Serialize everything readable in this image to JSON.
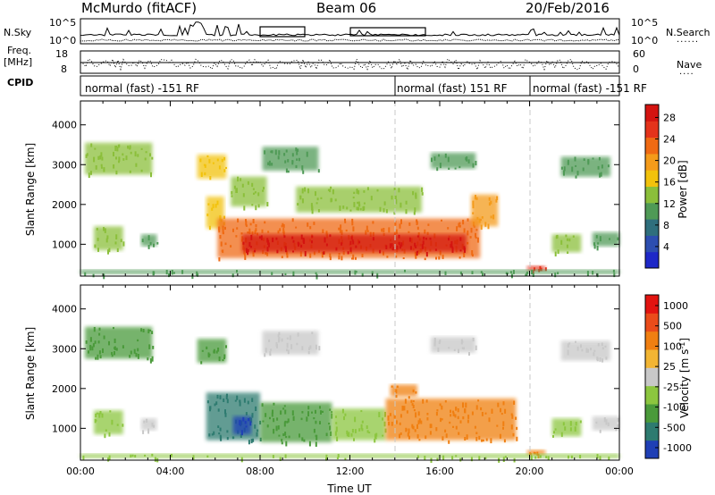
{
  "header": {
    "station": "McMurdo (fitACF)",
    "beam": "Beam 06",
    "date": "20/Feb/2016"
  },
  "left_labels": {
    "nsky": "N.Sky",
    "freq": "Freq.",
    "freq_unit": "[MHz]",
    "cpid": "CPID"
  },
  "right_labels": {
    "nsearch": "N.Search",
    "nave": "Nave"
  },
  "axis_ticks": {
    "sky_left": [
      "10^5",
      "10^0"
    ],
    "sky_right": [
      "10^5",
      "10^0"
    ],
    "freq_left": [
      "18",
      "8"
    ],
    "nave_right": [
      "60",
      "0"
    ]
  },
  "modes": [
    {
      "text": "normal (fast) -151 RF",
      "start_hour": 0
    },
    {
      "text": "normal (fast) 151 RF",
      "start_hour": 14
    },
    {
      "text": "normal (fast) -151 RF",
      "start_hour": 20
    }
  ],
  "colors": {
    "frame": "#000000",
    "mode_divider": "#c8c8c8"
  },
  "chart_data": [
    {
      "type": "heatmap",
      "title": "",
      "ylabel": "Slant Range [km]",
      "xlabel": "",
      "ylim": [
        200,
        4600
      ],
      "xlim": [
        0,
        24
      ],
      "y_ticks": [
        "1000",
        "2000",
        "3000",
        "4000"
      ],
      "colorbar": {
        "label": "Power [dB]",
        "ticks": [
          "4",
          "8",
          "12",
          "16",
          "20",
          "24",
          "28"
        ],
        "colors": [
          "#1e28c8",
          "#2d4eb0",
          "#2f6f7d",
          "#4f9a56",
          "#8bbf3a",
          "#f2c20c",
          "#f49b1a",
          "#ef6a13",
          "#e4331b",
          "#d41410"
        ]
      },
      "echo_regions": [
        {
          "t0": 0.2,
          "t1": 3.2,
          "r0": 2750,
          "r1": 3550,
          "level": 4
        },
        {
          "t0": 0.6,
          "t1": 1.9,
          "r0": 850,
          "r1": 1450,
          "level": 4
        },
        {
          "t0": 2.7,
          "t1": 3.4,
          "r0": 950,
          "r1": 1250,
          "level": 3
        },
        {
          "t0": 5.2,
          "t1": 6.5,
          "r0": 2650,
          "r1": 3250,
          "level": 5
        },
        {
          "t0": 5.6,
          "t1": 6.4,
          "r0": 1400,
          "r1": 2200,
          "level": 5
        },
        {
          "t0": 6.7,
          "t1": 8.3,
          "r0": 1950,
          "r1": 2700,
          "level": 4
        },
        {
          "t0": 6.1,
          "t1": 17.8,
          "r0": 650,
          "r1": 1650,
          "level": 7
        },
        {
          "t0": 7.2,
          "t1": 17.2,
          "r0": 800,
          "r1": 1250,
          "level": 9
        },
        {
          "t0": 8.1,
          "t1": 10.6,
          "r0": 2850,
          "r1": 3450,
          "level": 3
        },
        {
          "t0": 9.6,
          "t1": 15.2,
          "r0": 1800,
          "r1": 2450,
          "level": 4
        },
        {
          "t0": 15.6,
          "t1": 17.6,
          "r0": 2900,
          "r1": 3300,
          "level": 3
        },
        {
          "t0": 17.4,
          "t1": 18.6,
          "r0": 1450,
          "r1": 2250,
          "level": 6
        },
        {
          "t0": 19.9,
          "t1": 20.7,
          "r0": 330,
          "r1": 460,
          "level": 8
        },
        {
          "t0": 21.0,
          "t1": 22.3,
          "r0": 800,
          "r1": 1250,
          "level": 4
        },
        {
          "t0": 21.4,
          "t1": 23.6,
          "r0": 2700,
          "r1": 3200,
          "level": 3
        },
        {
          "t0": 22.8,
          "t1": 24.0,
          "r0": 950,
          "r1": 1300,
          "level": 3
        },
        {
          "t0": 0.0,
          "t1": 24.0,
          "r0": 250,
          "r1": 360,
          "level": 3
        }
      ]
    },
    {
      "type": "heatmap",
      "title": "",
      "ylabel": "Slant Range [km]",
      "xlabel": "Time UT",
      "ylim": [
        200,
        4600
      ],
      "xlim": [
        0,
        24
      ],
      "x_ticks": [
        "00:00",
        "04:00",
        "08:00",
        "12:00",
        "16:00",
        "20:00",
        "00:00"
      ],
      "y_ticks": [
        "1000",
        "2000",
        "3000",
        "4000"
      ],
      "colorbar": {
        "label": "Velocity [m s^-1]",
        "ticks": [
          "1000",
          "500",
          "100",
          "25",
          "-25",
          "-100",
          "-500",
          "-1000"
        ],
        "colors": [
          "#1f3fb5",
          "#2e7b70",
          "#4a9a3a",
          "#8cc63f",
          "#c8c8c8",
          "#f2b533",
          "#f07f11",
          "#ea4c1a",
          "#e21410"
        ]
      },
      "echo_regions": [
        {
          "t0": 0.2,
          "t1": 3.2,
          "r0": 2750,
          "r1": 3550,
          "level": 2
        },
        {
          "t0": 0.6,
          "t1": 1.9,
          "r0": 850,
          "r1": 1450,
          "level": 3
        },
        {
          "t0": 2.7,
          "t1": 3.4,
          "r0": 950,
          "r1": 1250,
          "level": 4
        },
        {
          "t0": 5.2,
          "t1": 6.5,
          "r0": 2650,
          "r1": 3250,
          "level": 2
        },
        {
          "t0": 5.6,
          "t1": 8.0,
          "r0": 700,
          "r1": 1900,
          "level": 1
        },
        {
          "t0": 6.8,
          "t1": 7.6,
          "r0": 850,
          "r1": 1300,
          "level": 0
        },
        {
          "t0": 8.0,
          "t1": 11.2,
          "r0": 650,
          "r1": 1650,
          "level": 2
        },
        {
          "t0": 11.2,
          "t1": 13.6,
          "r0": 700,
          "r1": 1500,
          "level": 3
        },
        {
          "t0": 8.1,
          "t1": 10.6,
          "r0": 2850,
          "r1": 3450,
          "level": 4
        },
        {
          "t0": 13.6,
          "t1": 19.4,
          "r0": 700,
          "r1": 1750,
          "level": 6
        },
        {
          "t0": 13.8,
          "t1": 15.0,
          "r0": 1800,
          "r1": 2100,
          "level": 6
        },
        {
          "t0": 15.6,
          "t1": 17.6,
          "r0": 2900,
          "r1": 3300,
          "level": 4
        },
        {
          "t0": 19.9,
          "t1": 20.7,
          "r0": 330,
          "r1": 460,
          "level": 6
        },
        {
          "t0": 21.0,
          "t1": 22.3,
          "r0": 800,
          "r1": 1250,
          "level": 3
        },
        {
          "t0": 21.4,
          "t1": 23.6,
          "r0": 2700,
          "r1": 3200,
          "level": 4
        },
        {
          "t0": 22.8,
          "t1": 24.0,
          "r0": 950,
          "r1": 1300,
          "level": 4
        },
        {
          "t0": 0.0,
          "t1": 24.0,
          "r0": 250,
          "r1": 360,
          "level": 3
        }
      ]
    }
  ]
}
